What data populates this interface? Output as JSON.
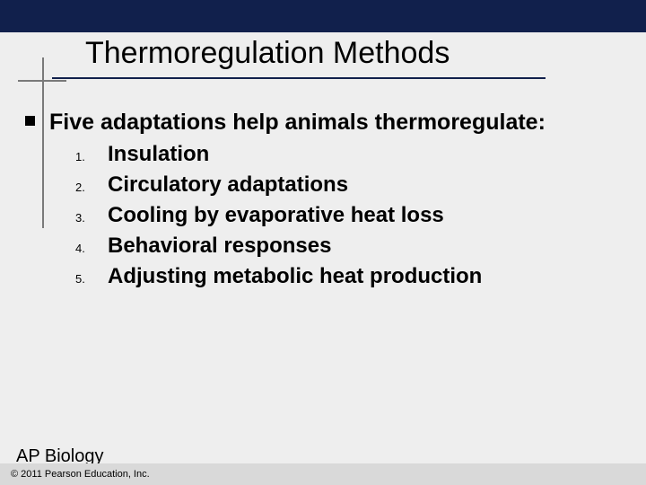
{
  "colors": {
    "topbar": "#11204c",
    "underline": "#11204c",
    "cross": "#7a7a7a",
    "background": "#eeeeee",
    "footer_bar": "#d9d9d9",
    "text": "#000000"
  },
  "title": {
    "text": "Thermoregulation Methods",
    "fontsize": 34
  },
  "lead": {
    "text": "Five adaptations help animals thermoregulate:",
    "fontsize": 25
  },
  "list": {
    "fontsize_text": 24,
    "fontsize_num": 13,
    "items": [
      {
        "num": "1.",
        "text": "Insulation"
      },
      {
        "num": "2.",
        "text": "Circulatory adaptations"
      },
      {
        "num": "3.",
        "text": "Cooling by evaporative heat loss"
      },
      {
        "num": "4.",
        "text": "Behavioral responses"
      },
      {
        "num": "5.",
        "text": "Adjusting metabolic heat production"
      }
    ]
  },
  "footer": {
    "course": "AP Biology",
    "copyright": "© 2011 Pearson Education, Inc."
  }
}
